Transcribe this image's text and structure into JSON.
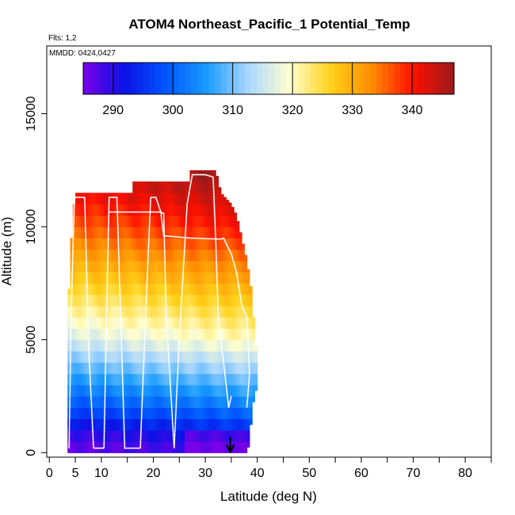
{
  "chart_data": {
    "type": "heatmap",
    "title": "ATOM4 Northeast_Pacific_1 Potential_Temp",
    "subtitle_flights": "Flts: 1,2",
    "subtitle_dates": "MMDD: 0424,0427",
    "xlabel": "Latitude (deg N)",
    "ylabel": "Altitude (m)",
    "xlim": [
      -0.5,
      85
    ],
    "ylim": [
      -200,
      18000
    ],
    "xticks": [
      0,
      5,
      10,
      20,
      30,
      40,
      50,
      60,
      70,
      80
    ],
    "xminor_ticks": [
      15,
      25,
      35,
      45,
      55,
      65,
      75,
      85
    ],
    "yticks": [
      0,
      5000,
      10000,
      15000
    ],
    "colorbar": {
      "range": [
        285,
        347
      ],
      "ticks": [
        290,
        300,
        310,
        320,
        330,
        340
      ],
      "colors": [
        "#7a00e8",
        "#0a12e6",
        "#0055ff",
        "#1a9cff",
        "#a9d6ff",
        "#ffffd0",
        "#ffd21a",
        "#ff8c00",
        "#ff1000",
        "#9a1a1a"
      ]
    },
    "surface_temp": 287,
    "theta_profile": [
      {
        "z": 0,
        "t": 287
      },
      {
        "z": 1000,
        "t": 292
      },
      {
        "z": 2000,
        "t": 300
      },
      {
        "z": 3500,
        "t": 309
      },
      {
        "z": 5000,
        "t": 318
      },
      {
        "z": 6500,
        "t": 324
      },
      {
        "z": 8000,
        "t": 330
      },
      {
        "z": 10000,
        "t": 338
      },
      {
        "z": 12500,
        "t": 346
      }
    ],
    "curtain_top": [
      {
        "x": 3.5,
        "z": 6000
      },
      {
        "x": 4.0,
        "z": 8500
      },
      {
        "x": 4.5,
        "z": 10500
      },
      {
        "x": 5.0,
        "z": 11500
      },
      {
        "x": 16.0,
        "z": 11500
      },
      {
        "x": 16.0,
        "z": 12000
      },
      {
        "x": 27.0,
        "z": 12000
      },
      {
        "x": 27.0,
        "z": 12500
      },
      {
        "x": 32.0,
        "z": 12500
      },
      {
        "x": 33.0,
        "z": 11500
      },
      {
        "x": 35.0,
        "z": 11000
      },
      {
        "x": 36.0,
        "z": 10500
      },
      {
        "x": 37.0,
        "z": 9500
      },
      {
        "x": 38.0,
        "z": 8500
      },
      {
        "x": 39.0,
        "z": 7000
      },
      {
        "x": 39.5,
        "z": 5000
      },
      {
        "x": 40.0,
        "z": 4500
      }
    ],
    "curtain_bottom_right": [
      {
        "x": 40.0,
        "z": 3000
      },
      {
        "x": 39.0,
        "z": 2000
      },
      {
        "x": 38.5,
        "z": 500
      },
      {
        "x": 38.0,
        "z": 0
      }
    ],
    "flight_track": [
      [
        3.8,
        200
      ],
      [
        4.2,
        6000
      ],
      [
        4.8,
        11300
      ],
      [
        6.8,
        11300
      ],
      [
        7.5,
        5000
      ],
      [
        8.5,
        200
      ],
      [
        10.5,
        200
      ],
      [
        11.0,
        6000
      ],
      [
        11.5,
        11300
      ],
      [
        12.5,
        11300
      ],
      [
        13.0,
        11300
      ],
      [
        14.5,
        200
      ],
      [
        17.5,
        200
      ],
      [
        18.5,
        6000
      ],
      [
        19.5,
        11300
      ],
      [
        20.5,
        11300
      ],
      [
        21.5,
        10600
      ],
      [
        22.0,
        10600
      ],
      [
        22.5,
        6000
      ],
      [
        24.0,
        200
      ],
      [
        25.0,
        5000
      ],
      [
        26.5,
        11000
      ],
      [
        27.5,
        12300
      ],
      [
        30.0,
        12300
      ],
      [
        31.5,
        12200
      ],
      [
        32.0,
        9500
      ],
      [
        32.5,
        6000
      ],
      [
        34.0,
        3000
      ],
      [
        34.5,
        2000
      ],
      [
        35.0,
        2500
      ]
    ],
    "flight_track_2": [
      [
        11.5,
        10650
      ],
      [
        21.5,
        10650
      ],
      [
        21.5,
        10500
      ],
      [
        22.0,
        9600
      ],
      [
        27.0,
        9500
      ],
      [
        33.0,
        9450
      ],
      [
        33.5,
        9500
      ],
      [
        35.0,
        8800
      ],
      [
        36.0,
        8000
      ],
      [
        37.0,
        6500
      ],
      [
        38.0,
        6000
      ],
      [
        38.5,
        3500
      ],
      [
        38.0,
        2000
      ]
    ],
    "arrow_marker": {
      "x": 34.8,
      "z_from": 700,
      "z_to": 0
    }
  }
}
